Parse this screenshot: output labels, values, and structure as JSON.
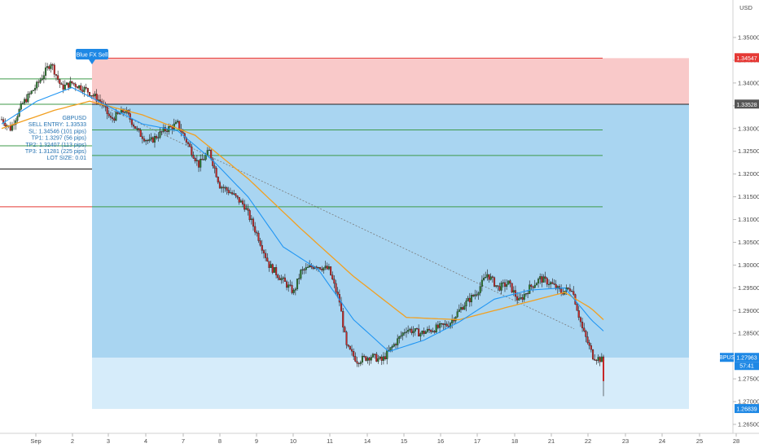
{
  "chart_data": {
    "type": "candlestick",
    "symbol": "GBPUSD",
    "currency": "USD",
    "x_axis": {
      "ticks": [
        "Sep",
        "2",
        "3",
        "4",
        "7",
        "8",
        "9",
        "10",
        "11",
        "14",
        "15",
        "16",
        "17",
        "18",
        "21",
        "22",
        "23",
        "24",
        "25",
        "28"
      ]
    },
    "y_axis": {
      "ylim": [
        1.264,
        1.356
      ],
      "ticks": [
        "1.35000",
        "1.34500",
        "1.34000",
        "1.33500",
        "1.33000",
        "1.32500",
        "1.32000",
        "1.31500",
        "1.31000",
        "1.30500",
        "1.30000",
        "1.29500",
        "1.29000",
        "1.28500",
        "1.28000",
        "1.27500",
        "1.27000",
        "1.26500"
      ]
    },
    "price_tags": [
      {
        "label": "",
        "value": "1.34547",
        "price": 1.34547,
        "color": "#e53935"
      },
      {
        "label": "",
        "value": "1.33528",
        "price": 1.33528,
        "color": "#555555"
      },
      {
        "label": "GBPUSD",
        "value": "1.27963",
        "sub": "57:41",
        "price": 1.27963,
        "color": "#1e88e5"
      },
      {
        "label": "",
        "value": "1.26839",
        "price": 1.26839,
        "color": "#1e88e5"
      }
    ],
    "signal_label": "Blue FX Sell",
    "trade_info": [
      "GBPUSD",
      "SELL ENTRY: 1.33533",
      "SL: 1.34546 (101 pips)",
      "TP1: 1.3297 (56 pips)",
      "TP2: 1.32407 (113 pips)",
      "TP3: 1.31281 (225 pips)",
      "LOT SIZE: 0.01"
    ],
    "levels": {
      "sl": 1.34546,
      "entry": 1.33533,
      "tp1": 1.3297,
      "tp2": 1.32407,
      "tp3": 1.31281,
      "green_left": 1.3409,
      "green_left2": 1.3262,
      "black_left": 1.3211,
      "red_left": 1.3128
    },
    "zones": {
      "profit_top": 1.33533,
      "profit_bottom": 1.27963,
      "light_bottom": 1.26839
    },
    "ohlc_keypoints": [
      [
        0,
        1.332
      ],
      [
        5,
        1.33
      ],
      [
        12,
        1.3355
      ],
      [
        20,
        1.3395
      ],
      [
        28,
        1.3445
      ],
      [
        34,
        1.339
      ],
      [
        40,
        1.34
      ],
      [
        48,
        1.3385
      ],
      [
        56,
        1.336
      ],
      [
        62,
        1.332
      ],
      [
        70,
        1.334
      ],
      [
        78,
        1.329
      ],
      [
        84,
        1.327
      ],
      [
        92,
        1.3295
      ],
      [
        100,
        1.331
      ],
      [
        106,
        1.3265
      ],
      [
        112,
        1.322
      ],
      [
        118,
        1.325
      ],
      [
        124,
        1.3175
      ],
      [
        130,
        1.316
      ],
      [
        138,
        1.313
      ],
      [
        146,
        1.306
      ],
      [
        152,
        1.3
      ],
      [
        160,
        1.2965
      ],
      [
        166,
        1.294
      ],
      [
        170,
        1.2985
      ],
      [
        178,
        1.3
      ],
      [
        186,
        1.299
      ],
      [
        192,
        1.292
      ],
      [
        196,
        1.282
      ],
      [
        202,
        1.279
      ],
      [
        210,
        1.28
      ],
      [
        216,
        1.279
      ],
      [
        222,
        1.282
      ],
      [
        230,
        1.286
      ],
      [
        238,
        1.285
      ],
      [
        246,
        1.286
      ],
      [
        254,
        1.287
      ],
      [
        262,
        1.291
      ],
      [
        270,
        1.294
      ],
      [
        276,
        1.298
      ],
      [
        282,
        1.295
      ],
      [
        288,
        1.296
      ],
      [
        294,
        1.292
      ],
      [
        300,
        1.295
      ],
      [
        306,
        1.297
      ],
      [
        312,
        1.296
      ],
      [
        318,
        1.294
      ],
      [
        324,
        1.295
      ],
      [
        330,
        1.286
      ],
      [
        336,
        1.28
      ],
      [
        342,
        1.279
      ]
    ],
    "ema_fast_keypoints": [
      [
        0,
        1.331
      ],
      [
        20,
        1.336
      ],
      [
        40,
        1.339
      ],
      [
        60,
        1.335
      ],
      [
        80,
        1.331
      ],
      [
        100,
        1.3295
      ],
      [
        120,
        1.323
      ],
      [
        140,
        1.315
      ],
      [
        160,
        1.304
      ],
      [
        180,
        1.299
      ],
      [
        200,
        1.288
      ],
      [
        220,
        1.281
      ],
      [
        240,
        1.2835
      ],
      [
        260,
        1.2875
      ],
      [
        280,
        1.2925
      ],
      [
        300,
        1.2945
      ],
      [
        320,
        1.295
      ],
      [
        335,
        1.288
      ],
      [
        342,
        1.2855
      ]
    ],
    "ema_slow_keypoints": [
      [
        0,
        1.33
      ],
      [
        30,
        1.334
      ],
      [
        50,
        1.336
      ],
      [
        80,
        1.333
      ],
      [
        110,
        1.3285
      ],
      [
        140,
        1.319
      ],
      [
        170,
        1.308
      ],
      [
        200,
        1.2975
      ],
      [
        230,
        1.2885
      ],
      [
        260,
        1.288
      ],
      [
        290,
        1.291
      ],
      [
        320,
        1.294
      ],
      [
        335,
        1.2905
      ],
      [
        342,
        1.288
      ]
    ],
    "trend_line": {
      "from_price": 1.33533,
      "to_price": 1.286
    }
  }
}
